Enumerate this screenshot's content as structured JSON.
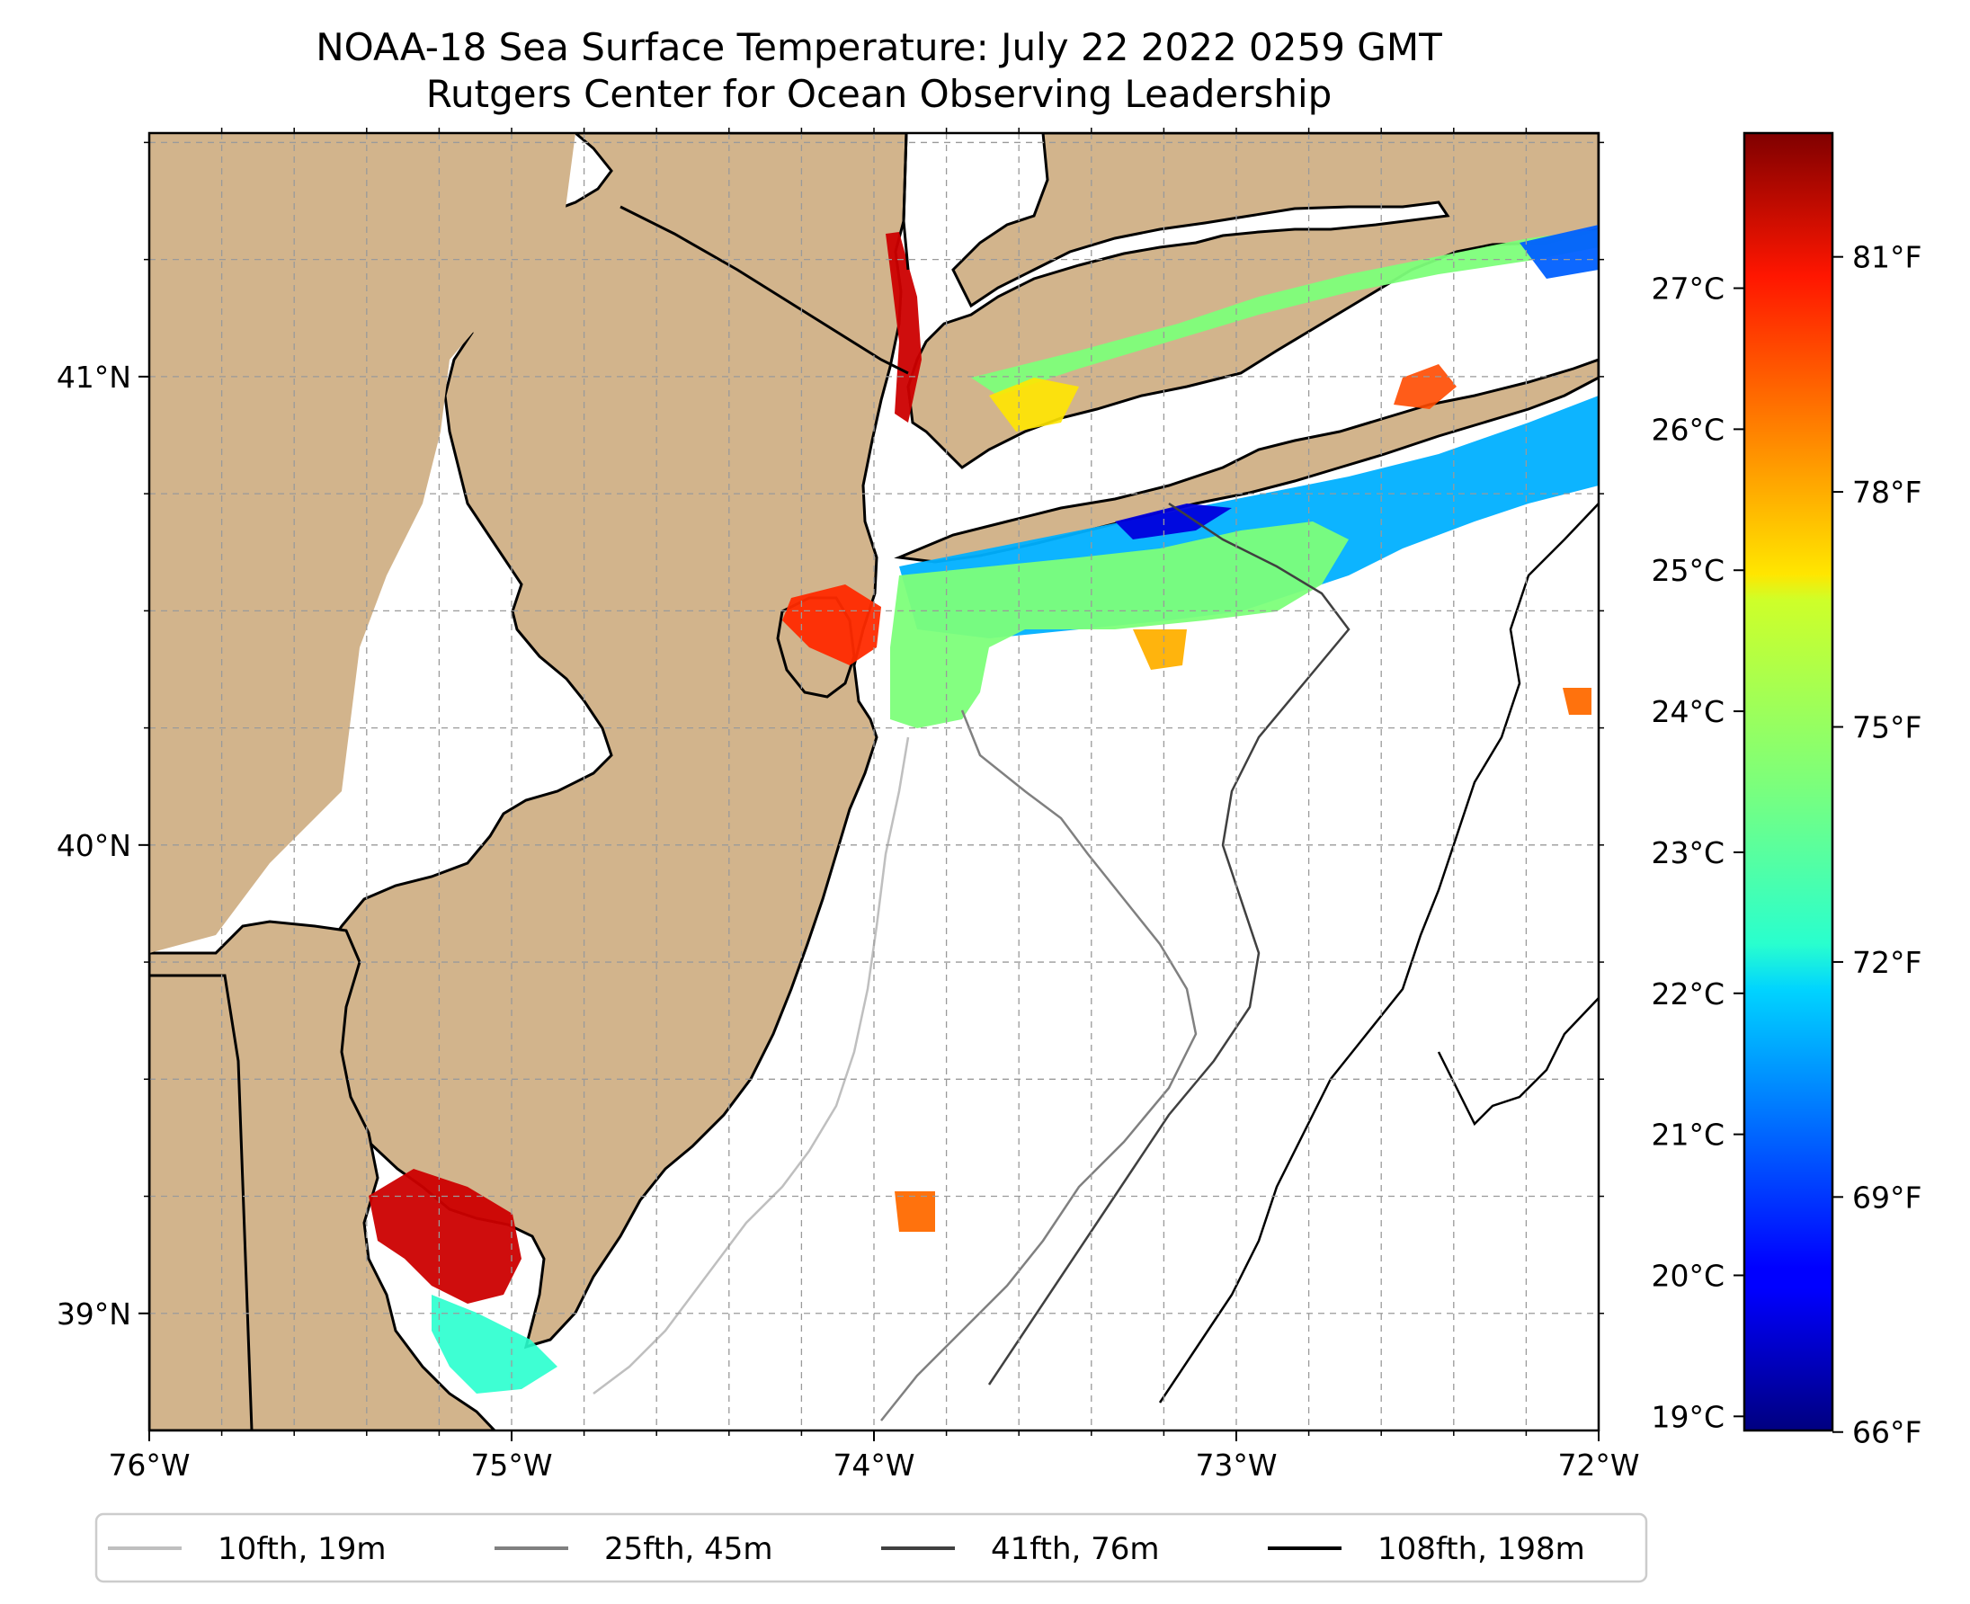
{
  "title": {
    "line1": "NOAA-18 Sea Surface Temperature: July 22 2022 0259 GMT",
    "line2": "Rutgers Center for Ocean Observing Leadership"
  },
  "map": {
    "lon_range": [
      -76,
      -72
    ],
    "lat_range": [
      38.75,
      41.52
    ],
    "lon_ticks": [
      -76,
      -75,
      -74,
      -73,
      -72
    ],
    "lon_tick_labels": [
      "76°W",
      "75°W",
      "74°W",
      "73°W",
      "72°W"
    ],
    "lat_ticks": [
      39,
      40,
      41
    ],
    "lat_tick_labels": [
      "39°N",
      "40°N",
      "41°N"
    ],
    "land_color": "#d2b48c",
    "ocean_color": "#ffffff",
    "grid": true
  },
  "colorbar": {
    "colormap": "jet",
    "range_celsius": [
      18.9,
      28.1
    ],
    "celsius_ticks": [
      19,
      20,
      21,
      22,
      23,
      24,
      25,
      26,
      27
    ],
    "celsius_labels": [
      "19°C",
      "20°C",
      "21°C",
      "22°C",
      "23°C",
      "24°C",
      "25°C",
      "26°C",
      "27°C"
    ],
    "fahrenheit_ticks": [
      66,
      69,
      72,
      75,
      78,
      81
    ],
    "fahrenheit_labels": [
      "66°F",
      "69°F",
      "72°F",
      "75°F",
      "78°F",
      "81°F"
    ]
  },
  "legend": {
    "placement": "bottom",
    "entries": [
      {
        "label": "10fth, 19m",
        "color": "#bfbfbf"
      },
      {
        "label": "25fth, 45m",
        "color": "#808080"
      },
      {
        "label": "41fth, 76m",
        "color": "#404040"
      },
      {
        "label": "108fth, 198m",
        "color": "#000000"
      }
    ]
  }
}
